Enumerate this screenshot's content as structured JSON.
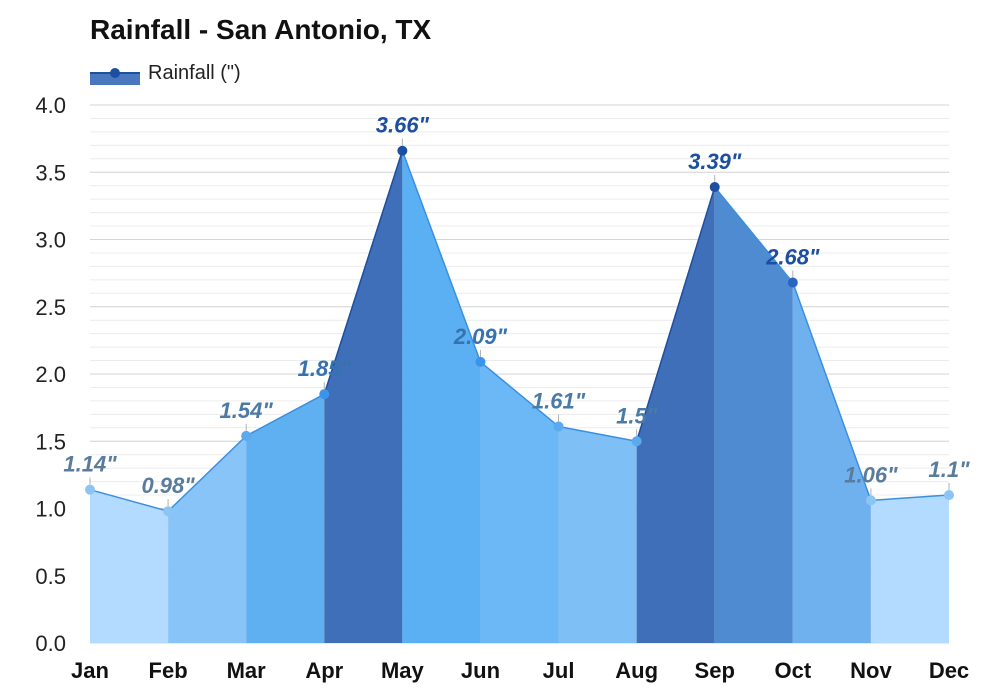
{
  "chart_data": {
    "type": "area",
    "title": "Rainfall - San Antonio, TX",
    "xlabel": "",
    "ylabel": "",
    "categories": [
      "Jan",
      "Feb",
      "Mar",
      "Apr",
      "May",
      "Jun",
      "Jul",
      "Aug",
      "Sep",
      "Oct",
      "Nov",
      "Dec"
    ],
    "series": [
      {
        "name": "Rainfall (\")",
        "values": [
          1.14,
          0.98,
          1.54,
          1.85,
          3.66,
          2.09,
          1.61,
          1.5,
          3.39,
          2.68,
          1.06,
          1.1
        ]
      }
    ],
    "data_labels": [
      "1.14\"",
      "0.98\"",
      "1.54\"",
      "1.85\"",
      "3.66\"",
      "2.09\"",
      "1.61\"",
      "1.5\"",
      "3.39\"",
      "2.68\"",
      "1.06\"",
      "1.1\""
    ],
    "ylim": [
      0,
      4.0
    ],
    "yticks": [
      "0.0",
      "0.5",
      "1.0",
      "1.5",
      "2.0",
      "2.5",
      "3.0",
      "3.5",
      "4.0"
    ],
    "grid": true,
    "legend_placement": "top-left",
    "colors": {
      "fills": [
        "#b3dbff",
        "#89c4f8",
        "#5fb0f0",
        "#3f6fb8",
        "#5ab0f2",
        "#6cb8f6",
        "#7ebff6",
        "#3f6fb8",
        "#4f8bd0",
        "#6fb0ee",
        "#b3dbff",
        "#9ccdf9"
      ],
      "legend_fill": "#4a78bf",
      "legend_marker": "#1c4fa0"
    }
  }
}
